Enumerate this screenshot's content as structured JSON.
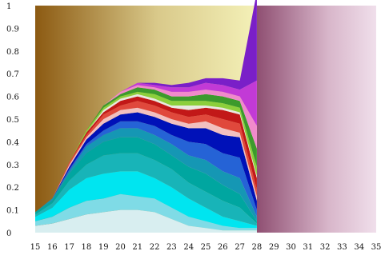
{
  "chart_data": {
    "type": "area",
    "stacked": true,
    "normalized": true,
    "x_ticks": [
      "15",
      "16",
      "17",
      "18",
      "19",
      "20",
      "21",
      "22",
      "23",
      "24",
      "25",
      "26",
      "27",
      "28",
      "29",
      "30",
      "31",
      "32",
      "33",
      "34",
      "35"
    ],
    "y_ticks": [
      "0",
      "0.1",
      "0.2",
      "0.3",
      "0.4",
      "0.5",
      "0.6",
      "0.7",
      "0.8",
      "0.9",
      "1"
    ],
    "ylim": [
      0,
      1
    ],
    "grid": false,
    "legend": "none",
    "background": {
      "left_gradient": [
        "#8c5a12",
        "#d9c98a",
        "#f4f1b8"
      ],
      "right_gradient": [
        "#8f4f72",
        "#d8b6ca",
        "#f0dfeb"
      ]
    },
    "x": [
      15,
      16,
      17,
      18,
      19,
      20,
      21,
      22,
      23,
      24,
      25,
      26,
      27,
      28
    ],
    "series": [
      {
        "color": "#d8eef0",
        "values": [
          0.03,
          0.04,
          0.06,
          0.08,
          0.09,
          0.1,
          0.1,
          0.09,
          0.06,
          0.03,
          0.02,
          0.01,
          0.01,
          0.01
        ]
      },
      {
        "color": "#7fdbe6",
        "values": [
          0.02,
          0.03,
          0.05,
          0.06,
          0.06,
          0.07,
          0.06,
          0.06,
          0.05,
          0.04,
          0.03,
          0.02,
          0.01,
          0.01
        ]
      },
      {
        "color": "#00e5f0",
        "values": [
          0.02,
          0.04,
          0.08,
          0.1,
          0.11,
          0.1,
          0.11,
          0.09,
          0.09,
          0.08,
          0.06,
          0.04,
          0.03,
          0.01
        ]
      },
      {
        "color": "#18b4b8",
        "values": [
          0.01,
          0.02,
          0.04,
          0.06,
          0.08,
          0.08,
          0.08,
          0.08,
          0.08,
          0.07,
          0.07,
          0.07,
          0.06,
          0.01
        ]
      },
      {
        "color": "#00a6a0",
        "values": [
          0.01,
          0.01,
          0.03,
          0.05,
          0.06,
          0.07,
          0.07,
          0.07,
          0.06,
          0.07,
          0.08,
          0.07,
          0.06,
          0.01
        ]
      },
      {
        "color": "#1597b4",
        "values": [
          0.0,
          0.01,
          0.01,
          0.03,
          0.03,
          0.04,
          0.04,
          0.04,
          0.05,
          0.05,
          0.06,
          0.06,
          0.07,
          0.02
        ]
      },
      {
        "color": "#2563d6",
        "values": [
          0.0,
          0.0,
          0.01,
          0.01,
          0.02,
          0.03,
          0.03,
          0.04,
          0.04,
          0.06,
          0.07,
          0.08,
          0.09,
          0.03
        ]
      },
      {
        "color": "#0011b8",
        "values": [
          0.0,
          0.0,
          0.01,
          0.02,
          0.03,
          0.03,
          0.04,
          0.04,
          0.05,
          0.06,
          0.07,
          0.08,
          0.09,
          0.04
        ]
      },
      {
        "color": "#f2c0c0",
        "values": [
          0.0,
          0.0,
          0.01,
          0.01,
          0.02,
          0.02,
          0.02,
          0.02,
          0.02,
          0.02,
          0.03,
          0.03,
          0.02,
          0.02
        ]
      },
      {
        "color": "#e0483c",
        "values": [
          0.0,
          0.0,
          0.01,
          0.01,
          0.02,
          0.02,
          0.03,
          0.03,
          0.03,
          0.03,
          0.03,
          0.04,
          0.04,
          0.03
        ]
      },
      {
        "color": "#c21818",
        "values": [
          0.0,
          0.0,
          0.0,
          0.01,
          0.01,
          0.02,
          0.02,
          0.02,
          0.02,
          0.03,
          0.03,
          0.04,
          0.04,
          0.05
        ]
      },
      {
        "color": "#e8e8e0",
        "values": [
          0.0,
          0.0,
          0.0,
          0.0,
          0.01,
          0.01,
          0.01,
          0.01,
          0.01,
          0.02,
          0.01,
          0.01,
          0.01,
          0.01
        ]
      },
      {
        "color": "#8ccf3c",
        "values": [
          0.0,
          0.0,
          0.0,
          0.01,
          0.01,
          0.01,
          0.01,
          0.02,
          0.02,
          0.02,
          0.02,
          0.02,
          0.02,
          0.04
        ]
      },
      {
        "color": "#3c9a2c",
        "values": [
          0.0,
          0.0,
          0.0,
          0.0,
          0.01,
          0.01,
          0.02,
          0.02,
          0.02,
          0.02,
          0.03,
          0.03,
          0.03,
          0.08
        ]
      },
      {
        "color": "#f08acb",
        "values": [
          0.0,
          0.0,
          0.0,
          0.0,
          0.0,
          0.01,
          0.01,
          0.01,
          0.02,
          0.02,
          0.02,
          0.02,
          0.02,
          0.1
        ]
      },
      {
        "color": "#c23ad6",
        "values": [
          0.0,
          0.0,
          0.0,
          0.0,
          0.0,
          0.0,
          0.01,
          0.01,
          0.02,
          0.02,
          0.03,
          0.03,
          0.03,
          0.2
        ]
      },
      {
        "color": "#7a1fc8",
        "values": [
          0.0,
          0.0,
          0.0,
          0.0,
          0.0,
          0.0,
          0.0,
          0.01,
          0.01,
          0.02,
          0.02,
          0.03,
          0.04,
          0.39
        ]
      }
    ]
  }
}
